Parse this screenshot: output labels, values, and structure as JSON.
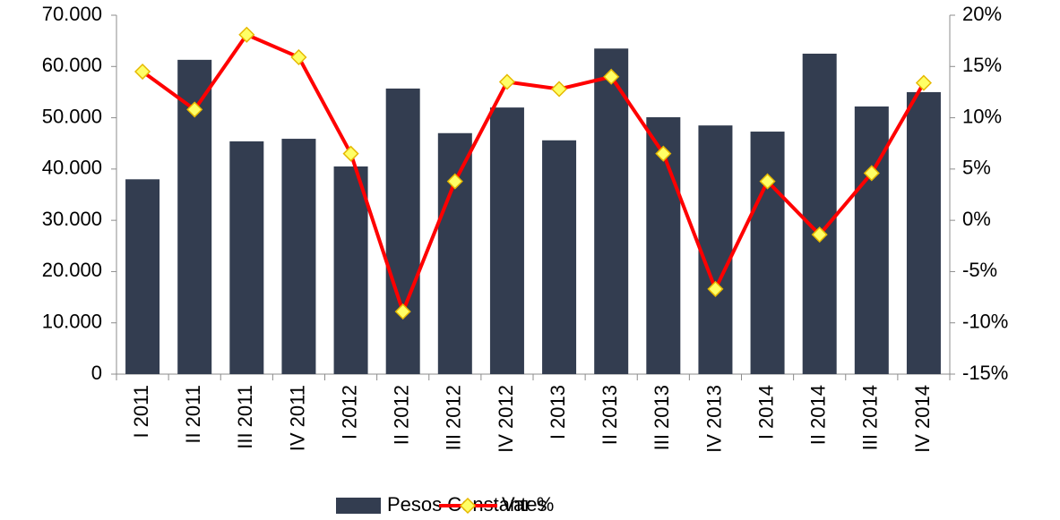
{
  "chart_data": {
    "type": "bar_line",
    "categories": [
      "I 2011",
      "II 2011",
      "III 2011",
      "IV 2011",
      "I 2012",
      "II 2012",
      "III 2012",
      "IV 2012",
      "I 2013",
      "II 2013",
      "III 2013",
      "IV 2013",
      "I 2014",
      "II 2014",
      "III 2014",
      "IV 2014"
    ],
    "series": [
      {
        "name": "Pesos Constantes",
        "color": "#333d50",
        "type": "bar",
        "values": [
          38000,
          61300,
          45400,
          45900,
          40500,
          55700,
          47000,
          52000,
          45600,
          63500,
          50100,
          48500,
          47300,
          62500,
          52200,
          55000
        ]
      },
      {
        "name": "Var %",
        "color": "#ff0000",
        "marker_color": "#ffff66",
        "type": "line",
        "axis": "y2",
        "values": [
          14.5,
          10.8,
          18.1,
          15.9,
          6.5,
          -8.9,
          3.8,
          13.5,
          12.8,
          14.0,
          6.5,
          -6.7,
          3.8,
          -1.4,
          4.6,
          13.4
        ]
      }
    ],
    "ylim": [
      0,
      70000
    ],
    "yticks": [
      0,
      {
        "value": 10000,
        "label": "10.000"
      },
      {
        "value": 20000,
        "label": "20.000"
      },
      {
        "value": 30000,
        "label": "30.000"
      },
      {
        "value": 40000,
        "label": "40.000"
      },
      {
        "value": 50000,
        "label": "50.000"
      },
      {
        "value": 60000,
        "label": "60.000"
      },
      {
        "value": 70000,
        "label": "70.000"
      }
    ],
    "y2lim": [
      -15,
      20
    ],
    "y2ticks": [
      {
        "value": -15,
        "label": "-15%"
      },
      {
        "value": -10,
        "label": "-10%"
      },
      {
        "value": -5,
        "label": "-5%"
      },
      {
        "value": 0,
        "label": "0%"
      },
      {
        "value": 5,
        "label": "5%"
      },
      {
        "value": 10,
        "label": "10%"
      },
      {
        "value": 15,
        "label": "15%"
      },
      {
        "value": 20,
        "label": "20%"
      }
    ],
    "legend": "bottom"
  }
}
